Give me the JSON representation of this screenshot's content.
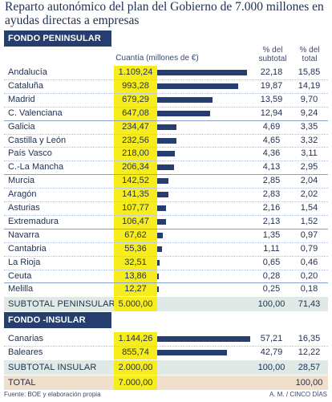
{
  "title": "Reparto autonómico del plan del Gobierno de 7.000  millones en ayudas directas a empresas",
  "colors": {
    "navy": "#263e6e",
    "yellow": "#f7ec1c",
    "subtotal_bg": "#dfe9e6",
    "total_bg": "#f1dfce"
  },
  "columns": {
    "cuantia": "Cuantía (millones de €)",
    "subtotal": "% del subtotal",
    "total": "% del total"
  },
  "chart_data": {
    "type": "bar",
    "orientation": "horizontal",
    "xlim": [
      0,
      1144.26
    ],
    "sections": [
      {
        "header": "FONDO PENINSULAR",
        "rows": [
          {
            "name": "Andalucía",
            "value": 1109.24,
            "label": "1.109,24",
            "pct_subtotal": "22,18",
            "pct_total": "15,85"
          },
          {
            "name": "Cataluña",
            "value": 993.28,
            "label": "993,28",
            "pct_subtotal": "19,87",
            "pct_total": "14,19"
          },
          {
            "name": "Madrid",
            "value": 679.29,
            "label": "679,29",
            "pct_subtotal": "13,59",
            "pct_total": "9,70"
          },
          {
            "name": "C. Valenciana",
            "value": 647.08,
            "label": "647,08",
            "pct_subtotal": "12,94",
            "pct_total": "9,24"
          },
          {
            "name": "Galicia",
            "value": 234.47,
            "label": "234,47",
            "pct_subtotal": "4,69",
            "pct_total": "3,35"
          },
          {
            "name": "Castilla y León",
            "value": 232.56,
            "label": "232,56",
            "pct_subtotal": "4,65",
            "pct_total": "3,32"
          },
          {
            "name": "País Vasco",
            "value": 218.0,
            "label": "218,00",
            "pct_subtotal": "4,36",
            "pct_total": "3,11"
          },
          {
            "name": "C.-La Mancha",
            "value": 206.34,
            "label": "206,34",
            "pct_subtotal": "4,13",
            "pct_total": "2,95"
          },
          {
            "name": "Murcia",
            "value": 142.52,
            "label": "142,52",
            "pct_subtotal": "2,85",
            "pct_total": "2,04"
          },
          {
            "name": "Aragón",
            "value": 141.35,
            "label": "141,35",
            "pct_subtotal": "2,83",
            "pct_total": "2,02"
          },
          {
            "name": "Asturias",
            "value": 107.77,
            "label": "107,77",
            "pct_subtotal": "2,16",
            "pct_total": "1,54"
          },
          {
            "name": "Extremadura",
            "value": 106.47,
            "label": "106,47",
            "pct_subtotal": "2,13",
            "pct_total": "1,52"
          },
          {
            "name": "Navarra",
            "value": 67.62,
            "label": "67,62",
            "pct_subtotal": "1,35",
            "pct_total": "0,97"
          },
          {
            "name": "Cantabria",
            "value": 55.36,
            "label": "55,36",
            "pct_subtotal": "1,11",
            "pct_total": "0,79"
          },
          {
            "name": "La Rioja",
            "value": 32.51,
            "label": "32,51",
            "pct_subtotal": "0,65",
            "pct_total": "0,46"
          },
          {
            "name": "Ceuta",
            "value": 13.86,
            "label": "13,86",
            "pct_subtotal": "0,28",
            "pct_total": "0,20"
          },
          {
            "name": "Melilla",
            "value": 12.27,
            "label": "12,27",
            "pct_subtotal": "0,25",
            "pct_total": "0,18"
          }
        ],
        "subtotal": {
          "name": "SUBTOTAL PENINSULAR",
          "label": "5.000,00",
          "pct_subtotal": "100,00",
          "pct_total": "71,43"
        }
      },
      {
        "header": "FONDO -INSULAR",
        "rows": [
          {
            "name": "Canarias",
            "value": 1144.26,
            "label": "1.144,26",
            "pct_subtotal": "57,21",
            "pct_total": "16,35"
          },
          {
            "name": "Baleares",
            "value": 855.74,
            "label": "855,74",
            "pct_subtotal": "42,79",
            "pct_total": "12,22"
          }
        ],
        "subtotal": {
          "name": "SUBTOTAL INSULAR",
          "label": "2.000,00",
          "pct_subtotal": "100,00",
          "pct_total": "28,57"
        }
      }
    ],
    "total": {
      "name": "TOTAL",
      "label": "7.000,00",
      "pct_total": "100,00"
    }
  },
  "footer": {
    "source": "Fuente: BOE y elaboración propia",
    "credit": "A. M. / CINCO DÍAS"
  }
}
